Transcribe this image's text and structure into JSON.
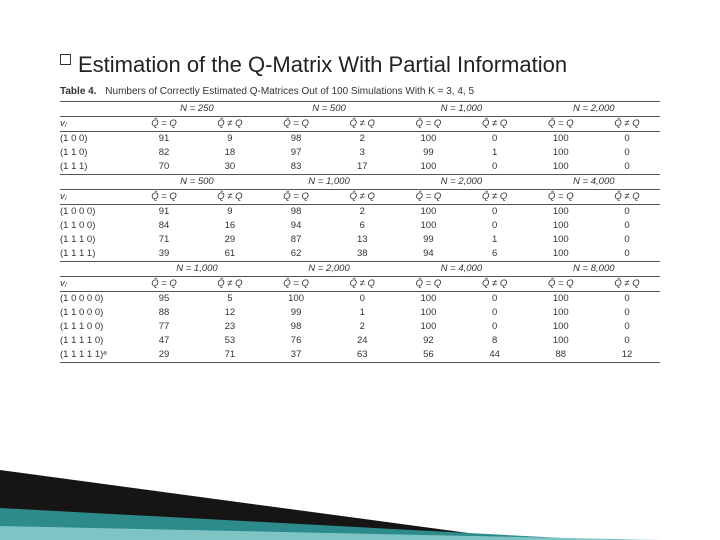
{
  "heading": {
    "text": "Estimation of the Q-Matrix With Partial Information"
  },
  "caption": {
    "label": "Table 4.",
    "text": "Numbers of Correctly Estimated Q-Matrices Out of 100 Simulations With K = 3, 4, 5"
  },
  "columns": {
    "vj": "vⱼ",
    "eq": "Q̂ = Q",
    "neq": "Q̂ ≠ Q"
  },
  "blocks": [
    {
      "ns": [
        "N = 250",
        "N = 500",
        "N = 1,000",
        "N = 2,000"
      ],
      "rows": [
        {
          "v": "(1 0 0)",
          "c": [
            [
              "91",
              "9"
            ],
            [
              "98",
              "2"
            ],
            [
              "100",
              "0"
            ],
            [
              "100",
              "0"
            ]
          ]
        },
        {
          "v": "(1 1 0)",
          "c": [
            [
              "82",
              "18"
            ],
            [
              "97",
              "3"
            ],
            [
              "99",
              "1"
            ],
            [
              "100",
              "0"
            ]
          ]
        },
        {
          "v": "(1 1 1)",
          "c": [
            [
              "70",
              "30"
            ],
            [
              "83",
              "17"
            ],
            [
              "100",
              "0"
            ],
            [
              "100",
              "0"
            ]
          ]
        }
      ]
    },
    {
      "ns": [
        "N = 500",
        "N = 1,000",
        "N = 2,000",
        "N = 4,000"
      ],
      "rows": [
        {
          "v": "(1 0 0 0)",
          "c": [
            [
              "91",
              "9"
            ],
            [
              "98",
              "2"
            ],
            [
              "100",
              "0"
            ],
            [
              "100",
              "0"
            ]
          ]
        },
        {
          "v": "(1 1 0 0)",
          "c": [
            [
              "84",
              "16"
            ],
            [
              "94",
              "6"
            ],
            [
              "100",
              "0"
            ],
            [
              "100",
              "0"
            ]
          ]
        },
        {
          "v": "(1 1 1 0)",
          "c": [
            [
              "71",
              "29"
            ],
            [
              "87",
              "13"
            ],
            [
              "99",
              "1"
            ],
            [
              "100",
              "0"
            ]
          ]
        },
        {
          "v": "(1 1 1 1)",
          "c": [
            [
              "39",
              "61"
            ],
            [
              "62",
              "38"
            ],
            [
              "94",
              "6"
            ],
            [
              "100",
              "0"
            ]
          ]
        }
      ]
    },
    {
      "ns": [
        "N = 1,000",
        "N = 2,000",
        "N = 4,000",
        "N = 8,000"
      ],
      "rows": [
        {
          "v": "(1 0 0 0 0)",
          "c": [
            [
              "95",
              "5"
            ],
            [
              "100",
              "0"
            ],
            [
              "100",
              "0"
            ],
            [
              "100",
              "0"
            ]
          ]
        },
        {
          "v": "(1 1 0 0 0)",
          "c": [
            [
              "88",
              "12"
            ],
            [
              "99",
              "1"
            ],
            [
              "100",
              "0"
            ],
            [
              "100",
              "0"
            ]
          ]
        },
        {
          "v": "(1 1 1 0 0)",
          "c": [
            [
              "77",
              "23"
            ],
            [
              "98",
              "2"
            ],
            [
              "100",
              "0"
            ],
            [
              "100",
              "0"
            ]
          ]
        },
        {
          "v": "(1 1 1 1 0)",
          "c": [
            [
              "47",
              "53"
            ],
            [
              "76",
              "24"
            ],
            [
              "92",
              "8"
            ],
            [
              "100",
              "0"
            ]
          ]
        },
        {
          "v": "(1 1 1 1 1)ᵃ",
          "c": [
            [
              "29",
              "71"
            ],
            [
              "37",
              "63"
            ],
            [
              "56",
              "44"
            ],
            [
              "88",
              "12"
            ]
          ]
        }
      ]
    }
  ]
}
